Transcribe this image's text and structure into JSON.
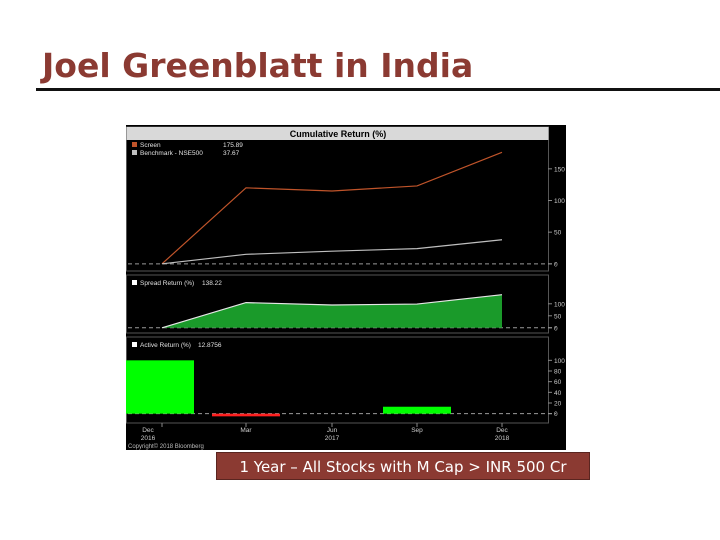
{
  "slide": {
    "title": "Joel Greenblatt in India",
    "caption": "1 Year – All Stocks with M Cap > INR 500 Cr"
  },
  "chart_data": [
    {
      "type": "line",
      "title": "Cumulative Return (%)",
      "x": [
        "Dec 2016",
        "Mar",
        "Jun 2017",
        "Sep",
        "Dec 2018"
      ],
      "ylim": [
        -5,
        175
      ],
      "yticks": [
        0,
        50,
        100,
        150
      ],
      "series": [
        {
          "name": "Screen",
          "legend_value": "175.89",
          "color": "#c0542a",
          "values": [
            0,
            120,
            115,
            123,
            176
          ]
        },
        {
          "name": "Benchmark - NSE500",
          "legend_value": "37.67",
          "color": "#bfbfbf",
          "values": [
            0,
            15,
            20,
            24,
            38
          ]
        }
      ]
    },
    {
      "type": "area",
      "title": "",
      "x": [
        "Dec 2016",
        "Mar",
        "Jun 2017",
        "Sep",
        "Dec 2018"
      ],
      "ylim": [
        -5,
        145
      ],
      "yticks": [
        0,
        50,
        100
      ],
      "series": [
        {
          "name": "Spread Return (%)",
          "legend_value": "138.22",
          "color": "#1a9a2a",
          "values": [
            0,
            105,
            95,
            99,
            138
          ]
        }
      ]
    },
    {
      "type": "bar",
      "title": "",
      "x": [
        "Dec 2016",
        "Mar",
        "Jun 2017",
        "Sep",
        "Dec 2018"
      ],
      "ylim": [
        -10,
        110
      ],
      "yticks": [
        0,
        20,
        40,
        60,
        80,
        100
      ],
      "series": [
        {
          "name": "Active Return (%)",
          "legend_value": "12.8756",
          "values": [
            100,
            -5,
            0,
            13,
            0
          ],
          "positive_color": "#00ff00",
          "negative_color": "#ff2020"
        }
      ]
    }
  ],
  "footer": {
    "x_labels": [
      {
        "top": "Dec",
        "bottom": "2016"
      },
      {
        "top": "Mar",
        "bottom": ""
      },
      {
        "top": "Jun",
        "bottom": "2017"
      },
      {
        "top": "Sep",
        "bottom": ""
      },
      {
        "top": "Dec",
        "bottom": "2018"
      }
    ],
    "copyright": "Copyright© 2018 Bloomberg"
  },
  "colors": {
    "chart_bg": "#000000",
    "title_color": "#8b3a32",
    "panel_header": "#d9d9d9"
  }
}
